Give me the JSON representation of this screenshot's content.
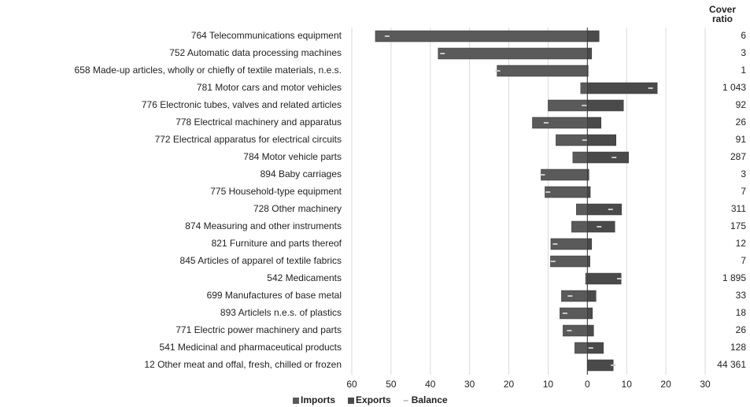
{
  "chart_data": {
    "type": "bar",
    "orientation": "horizontal",
    "categories": [
      "764 Telecommunications equipment",
      "752 Automatic data processing machines",
      "658 Made-up articles, wholly or chiefly of textile materials, n.e.s.",
      "781 Motor cars and motor vehicles",
      "776 Electronic tubes, valves and related articles",
      "778 Electrical machinery and apparatus",
      "772 Electrical apparatus for electrical circuits",
      "784 Motor vehicle parts",
      "894 Baby carriages",
      "775 Household-type equipment",
      "728 Other machinery",
      "874 Measuring and other instruments",
      "821 Furniture and parts thereof",
      "845 Articles of apparel of textile fabrics",
      "542 Medicaments",
      "699 Manufactures of base metal",
      "893 Articlels n.e.s. of plastics",
      "771 Electric power machinery and parts",
      "541 Medicinal and pharmaceutical products",
      "12 Other meat and offal, fresh, chilled or frozen"
    ],
    "series": [
      {
        "name": "Imports",
        "color": "#5a5a5a",
        "values": [
          -54,
          -38,
          -23,
          -1.7,
          -10,
          -14,
          -8,
          -3.7,
          -11.8,
          -10.8,
          -2.8,
          -4,
          -9.3,
          -9.4,
          -0.45,
          -6.6,
          -7,
          -6.2,
          -3.2,
          -0.015
        ]
      },
      {
        "name": "Exports",
        "color": "#4a4a4a",
        "values": [
          3,
          1.1,
          0.2,
          17.8,
          9.2,
          3.5,
          7.3,
          10.5,
          0.4,
          0.75,
          8.7,
          7,
          1.1,
          0.66,
          8.6,
          2.2,
          1.3,
          1.6,
          4.1,
          6.6
        ]
      },
      {
        "name": "Balance",
        "color": "#c8c8c8",
        "marker": "dash",
        "values": [
          -51,
          -36.9,
          -22.8,
          16.1,
          -0.8,
          -10.5,
          -0.7,
          6.8,
          -11.4,
          -10.05,
          5.9,
          3,
          -8.2,
          -8.74,
          8.15,
          -4.4,
          -5.7,
          -4.6,
          0.9,
          6.585
        ]
      }
    ],
    "cover_ratio": {
      "name": "Cover ratio",
      "values": [
        6,
        3,
        1,
        1043,
        92,
        26,
        91,
        287,
        3,
        7,
        311,
        175,
        12,
        7,
        1895,
        33,
        18,
        26,
        128,
        44361
      ],
      "value_labels": [
        "6",
        "3",
        "1",
        "1 043",
        "92",
        "26",
        "91",
        "287",
        "3",
        "7",
        "311",
        "175",
        "12",
        "7",
        "1 895",
        "33",
        "18",
        "26",
        "128",
        "44 361"
      ]
    },
    "xlim": [
      -60,
      30
    ],
    "xticks": [
      {
        "value": -60,
        "label": "60"
      },
      {
        "value": -50,
        "label": "50"
      },
      {
        "value": -40,
        "label": "40"
      },
      {
        "value": -30,
        "label": "30"
      },
      {
        "value": -20,
        "label": "20"
      },
      {
        "value": -10,
        "label": "10"
      },
      0,
      10,
      20,
      30
    ],
    "grid": true,
    "legend": "bottom"
  }
}
